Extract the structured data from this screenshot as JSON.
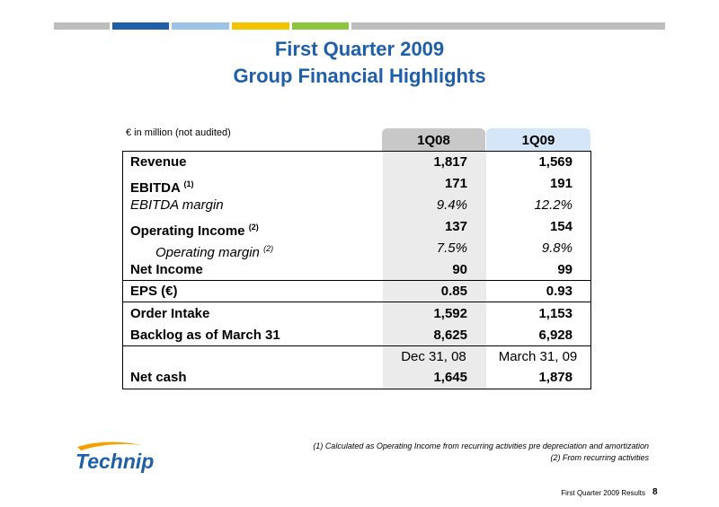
{
  "header": {
    "title": "First Quarter 2009",
    "subtitle": "Group Financial Highlights"
  },
  "table": {
    "unit": "€ in million (not audited)",
    "columns": [
      "1Q08",
      "1Q09"
    ],
    "rows": [
      {
        "label": "Revenue",
        "values": [
          "1,817",
          "1,569"
        ]
      },
      {
        "label": "EBITDA",
        "note": "(1)",
        "values": [
          "171",
          "191"
        ]
      },
      {
        "label": "EBITDA margin",
        "values": [
          "9.4%",
          "12.2%"
        ]
      },
      {
        "label": "Operating Income",
        "note": "(2)",
        "values": [
          "137",
          "154"
        ]
      },
      {
        "label": "Operating margin",
        "note": "(2)",
        "values": [
          "7.5%",
          "9.8%"
        ]
      },
      {
        "label": "Net Income",
        "values": [
          "90",
          "99"
        ]
      },
      {
        "label": "EPS (€)",
        "values": [
          "0.85",
          "0.93"
        ]
      },
      {
        "label": "Order Intake",
        "values": [
          "1,592",
          "1,153"
        ]
      },
      {
        "label": "Backlog as of March 31",
        "values": [
          "8,625",
          "6,928"
        ]
      },
      {
        "values": [
          "Dec 31, 08",
          "March 31, 09"
        ]
      },
      {
        "label": "Net cash",
        "values": [
          "1,645",
          "1,878"
        ]
      }
    ]
  },
  "footer": {
    "logo": "Technip",
    "notes": [
      "(1) Calculated as Operating Income from recurring activities pre depreciation and amortization",
      "(2) From recurring activities"
    ],
    "caption": "First Quarter 2009 Results",
    "page": "8"
  }
}
